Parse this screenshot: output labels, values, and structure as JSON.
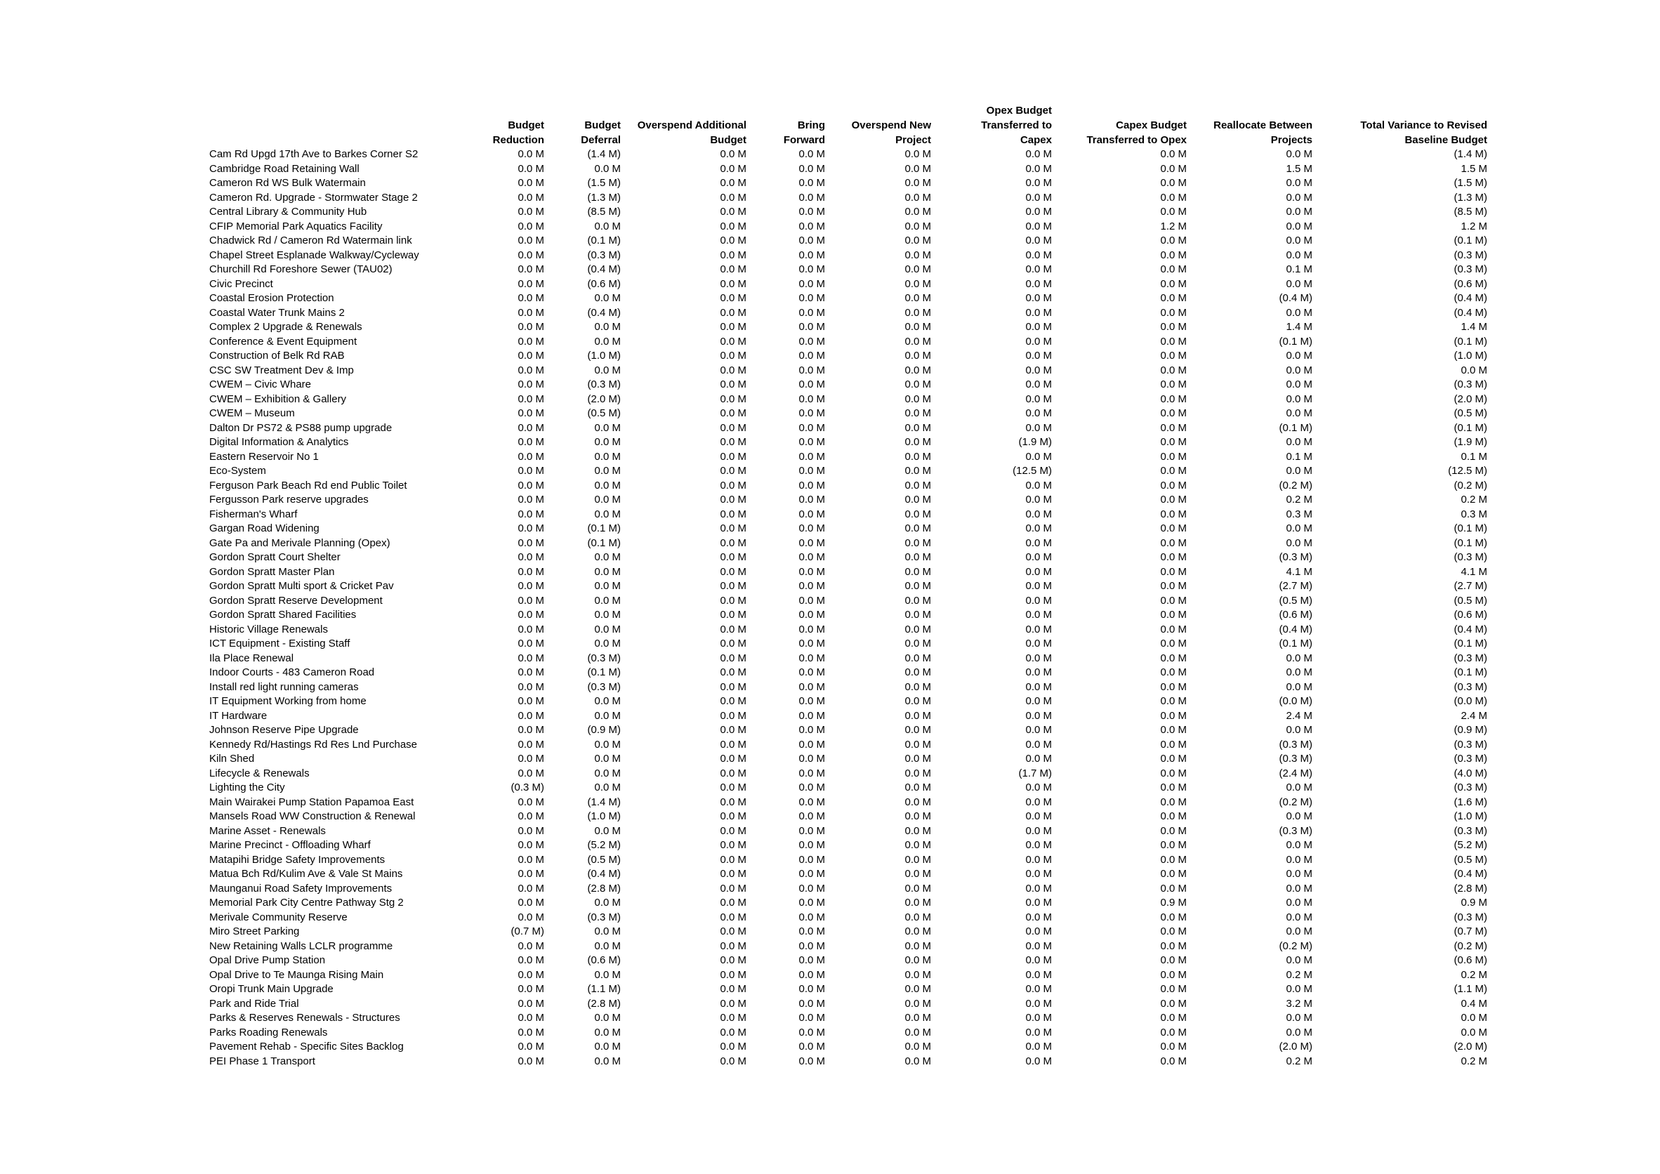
{
  "headers": [
    {
      "lines": [
        "Budget",
        "Reduction"
      ]
    },
    {
      "lines": [
        "Budget",
        "Deferral"
      ]
    },
    {
      "lines": [
        "Overspend Additional",
        "Budget"
      ]
    },
    {
      "lines": [
        "Bring",
        "Forward"
      ]
    },
    {
      "lines": [
        "Overspend New",
        "Project"
      ]
    },
    {
      "lines": [
        "Opex Budget",
        "Transferred to",
        "Capex"
      ]
    },
    {
      "lines": [
        "Capex Budget",
        "Transferred to Opex"
      ]
    },
    {
      "lines": [
        "Reallocate Between",
        "Projects"
      ]
    },
    {
      "lines": [
        "Total Variance to Revised",
        "Baseline Budget"
      ]
    }
  ],
  "rows": [
    {
      "name": "Cam Rd Upgd 17th Ave to Barkes Corner S2",
      "values": [
        "0.0 M",
        "(1.4 M)",
        "0.0 M",
        "0.0 M",
        "0.0 M",
        "0.0 M",
        "0.0 M",
        "0.0 M",
        "(1.4 M)"
      ]
    },
    {
      "name": "Cambridge Road Retaining Wall",
      "values": [
        "0.0 M",
        "0.0 M",
        "0.0 M",
        "0.0 M",
        "0.0 M",
        "0.0 M",
        "0.0 M",
        "1.5 M",
        "1.5 M"
      ]
    },
    {
      "name": "Cameron Rd WS Bulk Watermain",
      "values": [
        "0.0 M",
        "(1.5 M)",
        "0.0 M",
        "0.0 M",
        "0.0 M",
        "0.0 M",
        "0.0 M",
        "0.0 M",
        "(1.5 M)"
      ]
    },
    {
      "name": "Cameron Rd. Upgrade - Stormwater Stage 2",
      "values": [
        "0.0 M",
        "(1.3 M)",
        "0.0 M",
        "0.0 M",
        "0.0 M",
        "0.0 M",
        "0.0 M",
        "0.0 M",
        "(1.3 M)"
      ]
    },
    {
      "name": "Central Library & Community Hub",
      "values": [
        "0.0 M",
        "(8.5 M)",
        "0.0 M",
        "0.0 M",
        "0.0 M",
        "0.0 M",
        "0.0 M",
        "0.0 M",
        "(8.5 M)"
      ]
    },
    {
      "name": "CFIP Memorial Park Aquatics Facility",
      "values": [
        "0.0 M",
        "0.0 M",
        "0.0 M",
        "0.0 M",
        "0.0 M",
        "0.0 M",
        "1.2 M",
        "0.0 M",
        "1.2 M"
      ]
    },
    {
      "name": "Chadwick Rd / Cameron Rd Watermain link",
      "values": [
        "0.0 M",
        "(0.1 M)",
        "0.0 M",
        "0.0 M",
        "0.0 M",
        "0.0 M",
        "0.0 M",
        "0.0 M",
        "(0.1 M)"
      ]
    },
    {
      "name": "Chapel Street Esplanade Walkway/Cycleway",
      "values": [
        "0.0 M",
        "(0.3 M)",
        "0.0 M",
        "0.0 M",
        "0.0 M",
        "0.0 M",
        "0.0 M",
        "0.0 M",
        "(0.3 M)"
      ]
    },
    {
      "name": "Churchill Rd Foreshore Sewer (TAU02)",
      "values": [
        "0.0 M",
        "(0.4 M)",
        "0.0 M",
        "0.0 M",
        "0.0 M",
        "0.0 M",
        "0.0 M",
        "0.1 M",
        "(0.3 M)"
      ]
    },
    {
      "name": "Civic Precinct",
      "values": [
        "0.0 M",
        "(0.6 M)",
        "0.0 M",
        "0.0 M",
        "0.0 M",
        "0.0 M",
        "0.0 M",
        "0.0 M",
        "(0.6 M)"
      ]
    },
    {
      "name": "Coastal Erosion Protection",
      "values": [
        "0.0 M",
        "0.0 M",
        "0.0 M",
        "0.0 M",
        "0.0 M",
        "0.0 M",
        "0.0 M",
        "(0.4 M)",
        "(0.4 M)"
      ]
    },
    {
      "name": "Coastal Water Trunk Mains 2",
      "values": [
        "0.0 M",
        "(0.4 M)",
        "0.0 M",
        "0.0 M",
        "0.0 M",
        "0.0 M",
        "0.0 M",
        "0.0 M",
        "(0.4 M)"
      ]
    },
    {
      "name": "Complex 2 Upgrade & Renewals",
      "values": [
        "0.0 M",
        "0.0 M",
        "0.0 M",
        "0.0 M",
        "0.0 M",
        "0.0 M",
        "0.0 M",
        "1.4 M",
        "1.4 M"
      ]
    },
    {
      "name": "Conference & Event Equipment",
      "values": [
        "0.0 M",
        "0.0 M",
        "0.0 M",
        "0.0 M",
        "0.0 M",
        "0.0 M",
        "0.0 M",
        "(0.1 M)",
        "(0.1 M)"
      ]
    },
    {
      "name": "Construction of Belk Rd RAB",
      "values": [
        "0.0 M",
        "(1.0 M)",
        "0.0 M",
        "0.0 M",
        "0.0 M",
        "0.0 M",
        "0.0 M",
        "0.0 M",
        "(1.0 M)"
      ]
    },
    {
      "name": "CSC SW Treatment Dev & Imp",
      "values": [
        "0.0 M",
        "0.0 M",
        "0.0 M",
        "0.0 M",
        "0.0 M",
        "0.0 M",
        "0.0 M",
        "0.0 M",
        "0.0 M"
      ]
    },
    {
      "name": "CWEM – Civic Whare",
      "values": [
        "0.0 M",
        "(0.3 M)",
        "0.0 M",
        "0.0 M",
        "0.0 M",
        "0.0 M",
        "0.0 M",
        "0.0 M",
        "(0.3 M)"
      ]
    },
    {
      "name": "CWEM – Exhibition & Gallery",
      "values": [
        "0.0 M",
        "(2.0 M)",
        "0.0 M",
        "0.0 M",
        "0.0 M",
        "0.0 M",
        "0.0 M",
        "0.0 M",
        "(2.0 M)"
      ]
    },
    {
      "name": "CWEM – Museum",
      "values": [
        "0.0 M",
        "(0.5 M)",
        "0.0 M",
        "0.0 M",
        "0.0 M",
        "0.0 M",
        "0.0 M",
        "0.0 M",
        "(0.5 M)"
      ]
    },
    {
      "name": "Dalton Dr PS72 & PS88 pump upgrade",
      "values": [
        "0.0 M",
        "0.0 M",
        "0.0 M",
        "0.0 M",
        "0.0 M",
        "0.0 M",
        "0.0 M",
        "(0.1 M)",
        "(0.1 M)"
      ]
    },
    {
      "name": "Digital Information & Analytics",
      "values": [
        "0.0 M",
        "0.0 M",
        "0.0 M",
        "0.0 M",
        "0.0 M",
        "(1.9 M)",
        "0.0 M",
        "0.0 M",
        "(1.9 M)"
      ]
    },
    {
      "name": "Eastern Reservoir No 1",
      "values": [
        "0.0 M",
        "0.0 M",
        "0.0 M",
        "0.0 M",
        "0.0 M",
        "0.0 M",
        "0.0 M",
        "0.1 M",
        "0.1 M"
      ]
    },
    {
      "name": "Eco-System",
      "values": [
        "0.0 M",
        "0.0 M",
        "0.0 M",
        "0.0 M",
        "0.0 M",
        "(12.5 M)",
        "0.0 M",
        "0.0 M",
        "(12.5 M)"
      ]
    },
    {
      "name": "Ferguson Park Beach Rd end Public Toilet",
      "values": [
        "0.0 M",
        "0.0 M",
        "0.0 M",
        "0.0 M",
        "0.0 M",
        "0.0 M",
        "0.0 M",
        "(0.2 M)",
        "(0.2 M)"
      ]
    },
    {
      "name": "Fergusson Park reserve upgrades",
      "values": [
        "0.0 M",
        "0.0 M",
        "0.0 M",
        "0.0 M",
        "0.0 M",
        "0.0 M",
        "0.0 M",
        "0.2 M",
        "0.2 M"
      ]
    },
    {
      "name": "Fisherman's Wharf",
      "values": [
        "0.0 M",
        "0.0 M",
        "0.0 M",
        "0.0 M",
        "0.0 M",
        "0.0 M",
        "0.0 M",
        "0.3 M",
        "0.3 M"
      ]
    },
    {
      "name": "Gargan Road Widening",
      "values": [
        "0.0 M",
        "(0.1 M)",
        "0.0 M",
        "0.0 M",
        "0.0 M",
        "0.0 M",
        "0.0 M",
        "0.0 M",
        "(0.1 M)"
      ]
    },
    {
      "name": "Gate Pa and Merivale Planning (Opex)",
      "values": [
        "0.0 M",
        "(0.1 M)",
        "0.0 M",
        "0.0 M",
        "0.0 M",
        "0.0 M",
        "0.0 M",
        "0.0 M",
        "(0.1 M)"
      ]
    },
    {
      "name": "Gordon Spratt Court Shelter",
      "values": [
        "0.0 M",
        "0.0 M",
        "0.0 M",
        "0.0 M",
        "0.0 M",
        "0.0 M",
        "0.0 M",
        "(0.3 M)",
        "(0.3 M)"
      ]
    },
    {
      "name": "Gordon Spratt Master Plan",
      "values": [
        "0.0 M",
        "0.0 M",
        "0.0 M",
        "0.0 M",
        "0.0 M",
        "0.0 M",
        "0.0 M",
        "4.1 M",
        "4.1 M"
      ]
    },
    {
      "name": "Gordon Spratt Multi sport & Cricket Pav",
      "values": [
        "0.0 M",
        "0.0 M",
        "0.0 M",
        "0.0 M",
        "0.0 M",
        "0.0 M",
        "0.0 M",
        "(2.7 M)",
        "(2.7 M)"
      ]
    },
    {
      "name": "Gordon Spratt Reserve Development",
      "values": [
        "0.0 M",
        "0.0 M",
        "0.0 M",
        "0.0 M",
        "0.0 M",
        "0.0 M",
        "0.0 M",
        "(0.5 M)",
        "(0.5 M)"
      ]
    },
    {
      "name": "Gordon Spratt Shared Facilities",
      "values": [
        "0.0 M",
        "0.0 M",
        "0.0 M",
        "0.0 M",
        "0.0 M",
        "0.0 M",
        "0.0 M",
        "(0.6 M)",
        "(0.6 M)"
      ]
    },
    {
      "name": "Historic Village Renewals",
      "values": [
        "0.0 M",
        "0.0 M",
        "0.0 M",
        "0.0 M",
        "0.0 M",
        "0.0 M",
        "0.0 M",
        "(0.4 M)",
        "(0.4 M)"
      ]
    },
    {
      "name": "ICT Equipment - Existing Staff",
      "values": [
        "0.0 M",
        "0.0 M",
        "0.0 M",
        "0.0 M",
        "0.0 M",
        "0.0 M",
        "0.0 M",
        "(0.1 M)",
        "(0.1 M)"
      ]
    },
    {
      "name": "Ila Place Renewal",
      "values": [
        "0.0 M",
        "(0.3 M)",
        "0.0 M",
        "0.0 M",
        "0.0 M",
        "0.0 M",
        "0.0 M",
        "0.0 M",
        "(0.3 M)"
      ]
    },
    {
      "name": "Indoor Courts - 483 Cameron Road",
      "values": [
        "0.0 M",
        "(0.1 M)",
        "0.0 M",
        "0.0 M",
        "0.0 M",
        "0.0 M",
        "0.0 M",
        "0.0 M",
        "(0.1 M)"
      ]
    },
    {
      "name": "Install red light running cameras",
      "values": [
        "0.0 M",
        "(0.3 M)",
        "0.0 M",
        "0.0 M",
        "0.0 M",
        "0.0 M",
        "0.0 M",
        "0.0 M",
        "(0.3 M)"
      ]
    },
    {
      "name": "IT Equipment Working from home",
      "values": [
        "0.0 M",
        "0.0 M",
        "0.0 M",
        "0.0 M",
        "0.0 M",
        "0.0 M",
        "0.0 M",
        "(0.0 M)",
        "(0.0 M)"
      ]
    },
    {
      "name": "IT Hardware",
      "values": [
        "0.0 M",
        "0.0 M",
        "0.0 M",
        "0.0 M",
        "0.0 M",
        "0.0 M",
        "0.0 M",
        "2.4 M",
        "2.4 M"
      ]
    },
    {
      "name": "Johnson Reserve Pipe Upgrade",
      "values": [
        "0.0 M",
        "(0.9 M)",
        "0.0 M",
        "0.0 M",
        "0.0 M",
        "0.0 M",
        "0.0 M",
        "0.0 M",
        "(0.9 M)"
      ]
    },
    {
      "name": "Kennedy Rd/Hastings Rd Res Lnd Purchase",
      "values": [
        "0.0 M",
        "0.0 M",
        "0.0 M",
        "0.0 M",
        "0.0 M",
        "0.0 M",
        "0.0 M",
        "(0.3 M)",
        "(0.3 M)"
      ]
    },
    {
      "name": "Kiln Shed",
      "values": [
        "0.0 M",
        "0.0 M",
        "0.0 M",
        "0.0 M",
        "0.0 M",
        "0.0 M",
        "0.0 M",
        "(0.3 M)",
        "(0.3 M)"
      ]
    },
    {
      "name": "Lifecycle & Renewals",
      "values": [
        "0.0 M",
        "0.0 M",
        "0.0 M",
        "0.0 M",
        "0.0 M",
        "(1.7 M)",
        "0.0 M",
        "(2.4 M)",
        "(4.0 M)"
      ]
    },
    {
      "name": "Lighting the City",
      "values": [
        "(0.3 M)",
        "0.0 M",
        "0.0 M",
        "0.0 M",
        "0.0 M",
        "0.0 M",
        "0.0 M",
        "0.0 M",
        "(0.3 M)"
      ]
    },
    {
      "name": "Main Wairakei Pump Station Papamoa East",
      "values": [
        "0.0 M",
        "(1.4 M)",
        "0.0 M",
        "0.0 M",
        "0.0 M",
        "0.0 M",
        "0.0 M",
        "(0.2 M)",
        "(1.6 M)"
      ]
    },
    {
      "name": "Mansels Road WW Construction & Renewal",
      "values": [
        "0.0 M",
        "(1.0 M)",
        "0.0 M",
        "0.0 M",
        "0.0 M",
        "0.0 M",
        "0.0 M",
        "0.0 M",
        "(1.0 M)"
      ]
    },
    {
      "name": "Marine Asset - Renewals",
      "values": [
        "0.0 M",
        "0.0 M",
        "0.0 M",
        "0.0 M",
        "0.0 M",
        "0.0 M",
        "0.0 M",
        "(0.3 M)",
        "(0.3 M)"
      ]
    },
    {
      "name": "Marine Precinct - Offloading Wharf",
      "values": [
        "0.0 M",
        "(5.2 M)",
        "0.0 M",
        "0.0 M",
        "0.0 M",
        "0.0 M",
        "0.0 M",
        "0.0 M",
        "(5.2 M)"
      ]
    },
    {
      "name": "Matapihi Bridge Safety Improvements",
      "values": [
        "0.0 M",
        "(0.5 M)",
        "0.0 M",
        "0.0 M",
        "0.0 M",
        "0.0 M",
        "0.0 M",
        "0.0 M",
        "(0.5 M)"
      ]
    },
    {
      "name": "Matua Bch Rd/Kulim Ave & Vale St Mains",
      "values": [
        "0.0 M",
        "(0.4 M)",
        "0.0 M",
        "0.0 M",
        "0.0 M",
        "0.0 M",
        "0.0 M",
        "0.0 M",
        "(0.4 M)"
      ]
    },
    {
      "name": "Maunganui Road Safety Improvements",
      "values": [
        "0.0 M",
        "(2.8 M)",
        "0.0 M",
        "0.0 M",
        "0.0 M",
        "0.0 M",
        "0.0 M",
        "0.0 M",
        "(2.8 M)"
      ]
    },
    {
      "name": "Memorial Park City Centre Pathway Stg 2",
      "values": [
        "0.0 M",
        "0.0 M",
        "0.0 M",
        "0.0 M",
        "0.0 M",
        "0.0 M",
        "0.9 M",
        "0.0 M",
        "0.9 M"
      ]
    },
    {
      "name": "Merivale Community Reserve",
      "values": [
        "0.0 M",
        "(0.3 M)",
        "0.0 M",
        "0.0 M",
        "0.0 M",
        "0.0 M",
        "0.0 M",
        "0.0 M",
        "(0.3 M)"
      ]
    },
    {
      "name": "Miro Street Parking",
      "values": [
        "(0.7 M)",
        "0.0 M",
        "0.0 M",
        "0.0 M",
        "0.0 M",
        "0.0 M",
        "0.0 M",
        "0.0 M",
        "(0.7 M)"
      ]
    },
    {
      "name": "New Retaining Walls  LCLR programme",
      "values": [
        "0.0 M",
        "0.0 M",
        "0.0 M",
        "0.0 M",
        "0.0 M",
        "0.0 M",
        "0.0 M",
        "(0.2 M)",
        "(0.2 M)"
      ]
    },
    {
      "name": "Opal Drive Pump Station",
      "values": [
        "0.0 M",
        "(0.6 M)",
        "0.0 M",
        "0.0 M",
        "0.0 M",
        "0.0 M",
        "0.0 M",
        "0.0 M",
        "(0.6 M)"
      ]
    },
    {
      "name": "Opal Drive to Te Maunga Rising Main",
      "values": [
        "0.0 M",
        "0.0 M",
        "0.0 M",
        "0.0 M",
        "0.0 M",
        "0.0 M",
        "0.0 M",
        "0.2 M",
        "0.2 M"
      ]
    },
    {
      "name": "Oropi Trunk Main Upgrade",
      "values": [
        "0.0 M",
        "(1.1 M)",
        "0.0 M",
        "0.0 M",
        "0.0 M",
        "0.0 M",
        "0.0 M",
        "0.0 M",
        "(1.1 M)"
      ]
    },
    {
      "name": "Park and Ride Trial",
      "values": [
        "0.0 M",
        "(2.8 M)",
        "0.0 M",
        "0.0 M",
        "0.0 M",
        "0.0 M",
        "0.0 M",
        "3.2 M",
        "0.4 M"
      ]
    },
    {
      "name": "Parks & Reserves Renewals - Structures",
      "values": [
        "0.0 M",
        "0.0 M",
        "0.0 M",
        "0.0 M",
        "0.0 M",
        "0.0 M",
        "0.0 M",
        "0.0 M",
        "0.0 M"
      ]
    },
    {
      "name": "Parks Roading Renewals",
      "values": [
        "0.0 M",
        "0.0 M",
        "0.0 M",
        "0.0 M",
        "0.0 M",
        "0.0 M",
        "0.0 M",
        "0.0 M",
        "0.0 M"
      ]
    },
    {
      "name": "Pavement Rehab - Specific Sites Backlog",
      "values": [
        "0.0 M",
        "0.0 M",
        "0.0 M",
        "0.0 M",
        "0.0 M",
        "0.0 M",
        "0.0 M",
        "(2.0 M)",
        "(2.0 M)"
      ]
    },
    {
      "name": "PEI Phase 1 Transport",
      "values": [
        "0.0 M",
        "0.0 M",
        "0.0 M",
        "0.0 M",
        "0.0 M",
        "0.0 M",
        "0.0 M",
        "0.2 M",
        "0.2 M"
      ]
    }
  ]
}
